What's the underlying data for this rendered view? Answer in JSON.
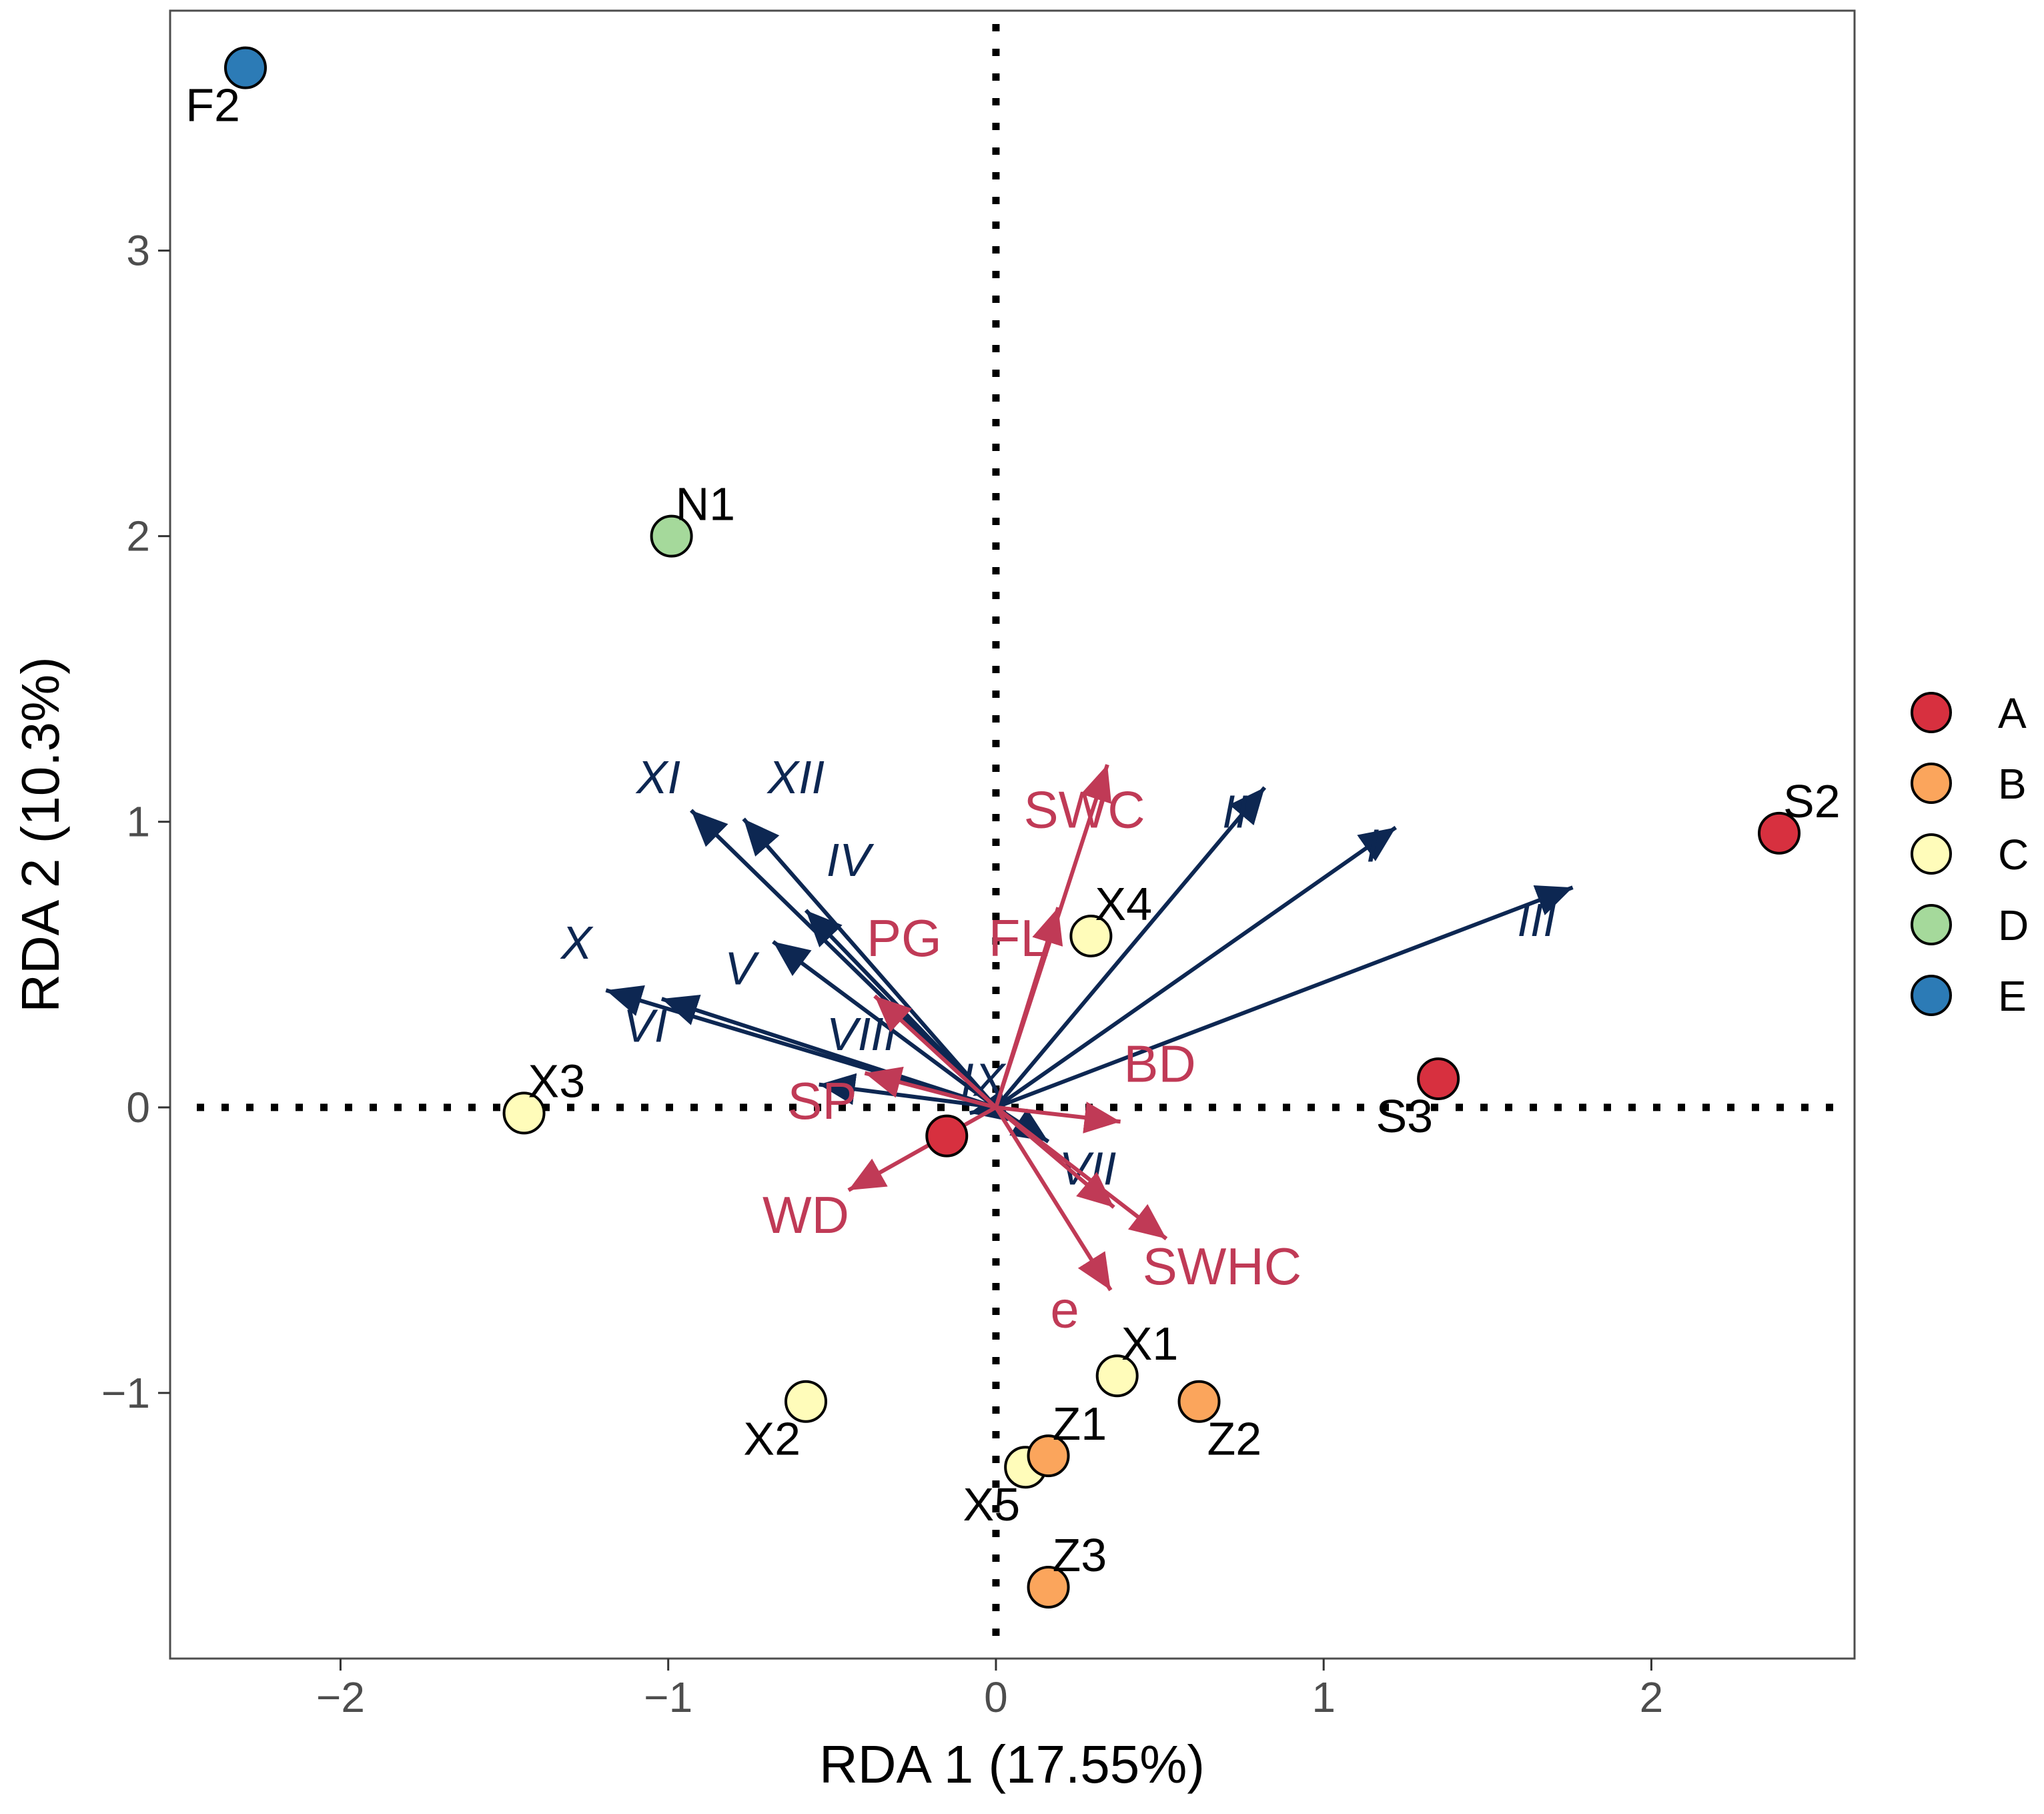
{
  "chart_data": {
    "type": "scatter",
    "subtype": "rda-biplot",
    "title": "",
    "xlabel": "RDA 1 (17.55%)",
    "ylabel": "RDA 2 (10.3%)",
    "xlim": [
      -2.52,
      2.62
    ],
    "ylim": [
      -1.93,
      3.84
    ],
    "xticks": [
      -2,
      -1,
      0,
      1,
      2
    ],
    "yticks": [
      -1,
      0,
      1,
      2,
      3
    ],
    "xtick_labels": [
      "−2",
      "−1",
      "0",
      "1",
      "2"
    ],
    "ytick_labels": [
      "−1",
      "0",
      "1",
      "2",
      "3"
    ],
    "grid": false,
    "reference_lines": {
      "x": 0,
      "y": 0,
      "style": "dotted"
    },
    "legend": {
      "position": "right",
      "entries": [
        {
          "label": "A",
          "color": "#d7303f"
        },
        {
          "label": "B",
          "color": "#fba55c"
        },
        {
          "label": "C",
          "color": "#fffcba"
        },
        {
          "label": "D",
          "color": "#a5d99b"
        },
        {
          "label": "E",
          "color": "#2c7bb6"
        }
      ]
    },
    "sites": [
      {
        "label": "F2",
        "group": "E",
        "x": -2.29,
        "y": 3.64,
        "label_anchor": "bottom-left"
      },
      {
        "label": "N1",
        "group": "D",
        "x": -0.99,
        "y": 2.0,
        "label_anchor": "top-right"
      },
      {
        "label": "S2",
        "group": "A",
        "x": 2.39,
        "y": 0.96,
        "label_anchor": "top-right"
      },
      {
        "label": "S3",
        "group": "A",
        "x": 1.35,
        "y": 0.1,
        "label_anchor": "bottom-left"
      },
      {
        "label": "",
        "group": "A",
        "x": -0.15,
        "y": -0.1,
        "label_anchor": "none"
      },
      {
        "label": "X4",
        "group": "C",
        "x": 0.29,
        "y": 0.6,
        "label_anchor": "top-right"
      },
      {
        "label": "X3",
        "group": "C",
        "x": -1.44,
        "y": -0.02,
        "label_anchor": "top-right"
      },
      {
        "label": "X1",
        "group": "C",
        "x": 0.37,
        "y": -0.94,
        "label_anchor": "top-right"
      },
      {
        "label": "X2",
        "group": "C",
        "x": -0.58,
        "y": -1.03,
        "label_anchor": "bottom-left"
      },
      {
        "label": "X5",
        "group": "C",
        "x": 0.09,
        "y": -1.26,
        "label_anchor": "bottom-left"
      },
      {
        "label": "Z1",
        "group": "B",
        "x": 0.16,
        "y": -1.22,
        "label_anchor": "top-right"
      },
      {
        "label": "Z2",
        "group": "B",
        "x": 0.62,
        "y": -1.03,
        "label_anchor": "bottom-right"
      },
      {
        "label": "Z3",
        "group": "B",
        "x": 0.16,
        "y": -1.68,
        "label_anchor": "top-right"
      }
    ],
    "environment_vectors": {
      "color": "#c03a56",
      "vectors": [
        {
          "label": "SWC",
          "x": 0.34,
          "y": 1.2,
          "label_x": 0.27,
          "label_y": 0.98
        },
        {
          "label": "FL",
          "x": 0.19,
          "y": 0.7,
          "label_x": 0.07,
          "label_y": 0.53
        },
        {
          "label": "PG",
          "x": -0.37,
          "y": 0.39,
          "label_x": -0.28,
          "label_y": 0.53
        },
        {
          "label": "SP",
          "x": -0.4,
          "y": 0.12,
          "label_x": -0.53,
          "label_y": -0.04
        },
        {
          "label": "BD",
          "x": 0.38,
          "y": -0.05,
          "label_x": 0.5,
          "label_y": 0.09
        },
        {
          "label": "WD",
          "x": -0.45,
          "y": -0.29,
          "label_x": -0.58,
          "label_y": -0.44
        },
        {
          "label": "SWHC",
          "x": 0.52,
          "y": -0.46,
          "label_x": 0.69,
          "label_y": -0.62
        },
        {
          "label": "e",
          "x": 0.35,
          "y": -0.64,
          "label_x": 0.21,
          "label_y": -0.77
        },
        {
          "label": "",
          "x": 0.36,
          "y": -0.35,
          "label_x": 0,
          "label_y": 0
        }
      ]
    },
    "species_vectors": {
      "color": "#0d2752",
      "vectors": [
        {
          "label": "I",
          "x": 1.22,
          "y": 0.98,
          "label_x": 1.15,
          "label_y": 0.86
        },
        {
          "label": "II",
          "x": 0.82,
          "y": 1.12,
          "label_x": 0.73,
          "label_y": 0.98
        },
        {
          "label": "III",
          "x": 1.76,
          "y": 0.77,
          "label_x": 1.65,
          "label_y": 0.6
        },
        {
          "label": "IV",
          "x": -0.58,
          "y": 0.69,
          "label_x": -0.45,
          "label_y": 0.81
        },
        {
          "label": "V",
          "x": -0.68,
          "y": 0.58,
          "label_x": -0.78,
          "label_y": 0.43
        },
        {
          "label": "VI",
          "x": -1.02,
          "y": 0.38,
          "label_x": -1.07,
          "label_y": 0.23
        },
        {
          "label": "VII",
          "x": 0.16,
          "y": -0.12,
          "label_x": 0.28,
          "label_y": -0.27
        },
        {
          "label": "VIII",
          "x": -0.54,
          "y": 0.08,
          "label_x": -0.41,
          "label_y": 0.2
        },
        {
          "label": "IX",
          "x": -0.08,
          "y": -0.02,
          "label_x": -0.04,
          "label_y": 0.04
        },
        {
          "label": "X",
          "x": -1.19,
          "y": 0.41,
          "label_x": -1.28,
          "label_y": 0.52
        },
        {
          "label": "XI",
          "x": -0.93,
          "y": 1.04,
          "label_x": -1.03,
          "label_y": 1.1
        },
        {
          "label": "XII",
          "x": -0.77,
          "y": 1.01,
          "label_x": -0.61,
          "label_y": 1.1
        }
      ]
    }
  }
}
